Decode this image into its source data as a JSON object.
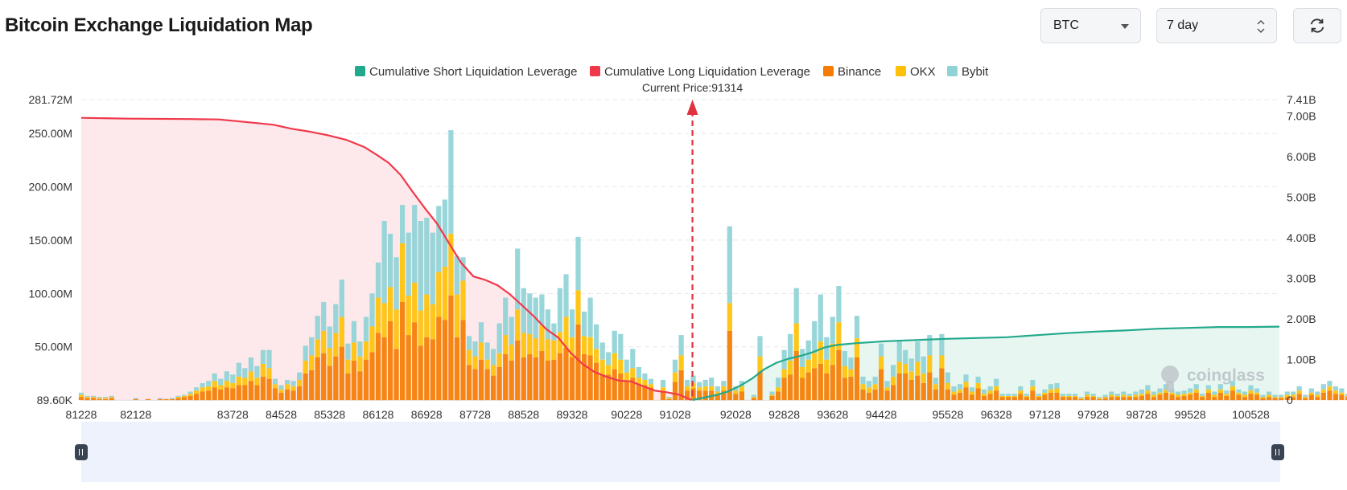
{
  "header": {
    "title": "Bitcoin Exchange Liquidation Map",
    "coin_value": "BTC",
    "range_value": "7 day",
    "refresh_icon": "refresh-icon"
  },
  "colors": {
    "short": "#22a98b",
    "long": "#f0384a",
    "binance": "#f57c00",
    "okx": "#ffc107",
    "bybit": "#8fd3d6",
    "long_fill": "#fde4e7",
    "short_fill": "#e4f4ef"
  },
  "chart_data": {
    "type": "bar",
    "title": "",
    "current_price_label": "Current Price:91314",
    "current_price": 91314,
    "watermark": "coinglass",
    "legend": [
      "Cumulative Short Liquidation Leverage",
      "Cumulative Long Liquidation Leverage",
      "Binance",
      "OKX",
      "Bybit"
    ],
    "legend_position": "top-center",
    "x_ticks": [
      "81228",
      "82128",
      "83728",
      "84528",
      "85328",
      "86128",
      "86928",
      "87728",
      "88528",
      "89328",
      "90228",
      "91028",
      "92028",
      "92828",
      "93628",
      "94428",
      "95528",
      "96328",
      "97128",
      "97928",
      "98728",
      "99528",
      "100528"
    ],
    "y_left_ticks": [
      "89.60K",
      "50.00M",
      "100.00M",
      "150.00M",
      "200.00M",
      "250.00M",
      "281.72M"
    ],
    "y_left_values": [
      0.0896,
      50,
      100,
      150,
      200,
      250,
      281.72
    ],
    "y_left_range": [
      0.0896,
      281.72
    ],
    "y_right_ticks": [
      "0",
      "1.00B",
      "2.00B",
      "3.00B",
      "4.00B",
      "5.00B",
      "6.00B",
      "7.00B",
      "7.41B"
    ],
    "y_right_values": [
      0,
      1,
      2,
      3,
      4,
      5,
      6,
      7,
      7.41
    ],
    "y_right_range": [
      0,
      7.41
    ],
    "x_range": [
      81228,
      101000
    ],
    "bar_step": 100,
    "bars_start": 81228,
    "stack_order": [
      "Binance",
      "OKX",
      "Bybit"
    ],
    "grid": true,
    "zoom_handles": true,
    "bars": [
      [
        3,
        2,
        2
      ],
      [
        2,
        1,
        1
      ],
      [
        2,
        1,
        1
      ],
      [
        1,
        1,
        1
      ],
      [
        1,
        1,
        1
      ],
      [
        2,
        1,
        1
      ],
      [
        0,
        0,
        0
      ],
      [
        0,
        0,
        0
      ],
      [
        0,
        0,
        0
      ],
      [
        1,
        0,
        1
      ],
      [
        0,
        0,
        0
      ],
      [
        1,
        0,
        0
      ],
      [
        0,
        0,
        0
      ],
      [
        1,
        0,
        1
      ],
      [
        1,
        0,
        0
      ],
      [
        1,
        0,
        1
      ],
      [
        2,
        1,
        1
      ],
      [
        3,
        1,
        1
      ],
      [
        4,
        2,
        2
      ],
      [
        6,
        3,
        3
      ],
      [
        8,
        4,
        4
      ],
      [
        9,
        4,
        5
      ],
      [
        12,
        6,
        7
      ],
      [
        10,
        4,
        6
      ],
      [
        12,
        6,
        9
      ],
      [
        11,
        5,
        8
      ],
      [
        14,
        8,
        13
      ],
      [
        14,
        7,
        9
      ],
      [
        18,
        9,
        13
      ],
      [
        14,
        7,
        11
      ],
      [
        22,
        12,
        13
      ],
      [
        20,
        10,
        17
      ],
      [
        11,
        4,
        5
      ],
      [
        7,
        3,
        4
      ],
      [
        10,
        5,
        4
      ],
      [
        9,
        4,
        5
      ],
      [
        13,
        6,
        7
      ],
      [
        25,
        12,
        14
      ],
      [
        28,
        14,
        17
      ],
      [
        40,
        17,
        22
      ],
      [
        44,
        21,
        27
      ],
      [
        32,
        17,
        20
      ],
      [
        41,
        22,
        27
      ],
      [
        50,
        28,
        35
      ],
      [
        25,
        13,
        15
      ],
      [
        37,
        17,
        20
      ],
      [
        27,
        14,
        14
      ],
      [
        38,
        17,
        23
      ],
      [
        45,
        24,
        31
      ],
      [
        63,
        33,
        33
      ],
      [
        59,
        32,
        77
      ],
      [
        74,
        32,
        50
      ],
      [
        48,
        37,
        49
      ],
      [
        92,
        55,
        36
      ],
      [
        61,
        37,
        59
      ],
      [
        73,
        37,
        73
      ],
      [
        51,
        33,
        84
      ],
      [
        59,
        40,
        72
      ],
      [
        57,
        33,
        67
      ],
      [
        78,
        42,
        62
      ],
      [
        75,
        50,
        63
      ],
      [
        98,
        58,
        97
      ],
      [
        59,
        40,
        36
      ],
      [
        75,
        37,
        22
      ],
      [
        33,
        14,
        13
      ],
      [
        29,
        12,
        14
      ],
      [
        38,
        16,
        19
      ],
      [
        29,
        9,
        16
      ],
      [
        23,
        10,
        15
      ],
      [
        31,
        13,
        28
      ],
      [
        43,
        18,
        35
      ],
      [
        37,
        15,
        26
      ],
      [
        56,
        29,
        57
      ],
      [
        40,
        23,
        42
      ],
      [
        43,
        19,
        38
      ],
      [
        40,
        18,
        38
      ],
      [
        46,
        24,
        29
      ],
      [
        37,
        20,
        28
      ],
      [
        38,
        18,
        16
      ],
      [
        44,
        20,
        41
      ],
      [
        49,
        29,
        40
      ],
      [
        40,
        19,
        26
      ],
      [
        71,
        32,
        50
      ],
      [
        43,
        17,
        23
      ],
      [
        42,
        17,
        37
      ],
      [
        35,
        13,
        23
      ],
      [
        24,
        14,
        16
      ],
      [
        24,
        9,
        12
      ],
      [
        29,
        15,
        21
      ],
      [
        25,
        13,
        24
      ],
      [
        18,
        8,
        12
      ],
      [
        21,
        9,
        18
      ],
      [
        15,
        6,
        10
      ],
      [
        14,
        5,
        6
      ],
      [
        12,
        3,
        5
      ],
      [
        0,
        0,
        0
      ],
      [
        8,
        4,
        7
      ],
      [
        1,
        1,
        1
      ],
      [
        17,
        9,
        12
      ],
      [
        28,
        14,
        19
      ],
      [
        9,
        4,
        6
      ],
      [
        11,
        5,
        7
      ],
      [
        9,
        3,
        5
      ],
      [
        9,
        4,
        6
      ],
      [
        9,
        4,
        8
      ],
      [
        6,
        2,
        5
      ],
      [
        9,
        4,
        5
      ],
      [
        65,
        26,
        72
      ],
      [
        6,
        3,
        4
      ],
      [
        8,
        5,
        5
      ],
      [
        0,
        0,
        0
      ],
      [
        2,
        1,
        2
      ],
      [
        27,
        14,
        19
      ],
      [
        0,
        0,
        0
      ],
      [
        4,
        1,
        3
      ],
      [
        8,
        4,
        9
      ],
      [
        21,
        8,
        18
      ],
      [
        24,
        13,
        25
      ],
      [
        46,
        26,
        33
      ],
      [
        21,
        10,
        17
      ],
      [
        26,
        12,
        18
      ],
      [
        30,
        14,
        30
      ],
      [
        34,
        21,
        44
      ],
      [
        25,
        13,
        21
      ],
      [
        33,
        20,
        25
      ],
      [
        47,
        26,
        34
      ],
      [
        21,
        11,
        14
      ],
      [
        22,
        7,
        11
      ],
      [
        40,
        18,
        21
      ],
      [
        10,
        5,
        7
      ],
      [
        7,
        5,
        6
      ],
      [
        10,
        5,
        7
      ],
      [
        29,
        12,
        12
      ],
      [
        9,
        3,
        6
      ],
      [
        14,
        8,
        11
      ],
      [
        25,
        11,
        19
      ],
      [
        25,
        9,
        13
      ],
      [
        19,
        8,
        12
      ],
      [
        23,
        13,
        19
      ],
      [
        16,
        9,
        16
      ],
      [
        26,
        16,
        19
      ],
      [
        10,
        5,
        6
      ],
      [
        30,
        12,
        20
      ],
      [
        10,
        6,
        10
      ],
      [
        5,
        3,
        5
      ],
      [
        7,
        3,
        5
      ],
      [
        12,
        5,
        7
      ],
      [
        5,
        3,
        4
      ],
      [
        11,
        5,
        6
      ],
      [
        4,
        2,
        4
      ],
      [
        6,
        3,
        4
      ],
      [
        9,
        4,
        7
      ],
      [
        3,
        1,
        2
      ],
      [
        3,
        1,
        2
      ],
      [
        3,
        1,
        2
      ],
      [
        6,
        3,
        4
      ],
      [
        3,
        1,
        2
      ],
      [
        9,
        4,
        6
      ],
      [
        3,
        1,
        2
      ],
      [
        5,
        2,
        3
      ],
      [
        7,
        3,
        5
      ],
      [
        7,
        4,
        5
      ],
      [
        3,
        1,
        2
      ],
      [
        3,
        1,
        2
      ],
      [
        3,
        1,
        2
      ],
      [
        1,
        1,
        1
      ],
      [
        3,
        2,
        3
      ],
      [
        3,
        1,
        2
      ],
      [
        1,
        1,
        1
      ],
      [
        2,
        1,
        2
      ],
      [
        3,
        2,
        3
      ],
      [
        3,
        1,
        2
      ],
      [
        3,
        2,
        3
      ],
      [
        3,
        1,
        2
      ],
      [
        3,
        2,
        3
      ],
      [
        4,
        2,
        4
      ],
      [
        6,
        3,
        5
      ],
      [
        3,
        2,
        3
      ],
      [
        5,
        2,
        4
      ],
      [
        7,
        3,
        5
      ],
      [
        5,
        2,
        3
      ],
      [
        3,
        2,
        3
      ],
      [
        4,
        2,
        3
      ],
      [
        5,
        2,
        4
      ],
      [
        7,
        3,
        5
      ],
      [
        3,
        1,
        2
      ],
      [
        7,
        3,
        4
      ],
      [
        3,
        2,
        3
      ],
      [
        7,
        3,
        5
      ],
      [
        4,
        2,
        3
      ],
      [
        9,
        4,
        5
      ],
      [
        5,
        2,
        3
      ],
      [
        3,
        2,
        3
      ],
      [
        6,
        3,
        5
      ],
      [
        5,
        2,
        4
      ],
      [
        2,
        1,
        2
      ],
      [
        3,
        2,
        3
      ],
      [
        2,
        1,
        2
      ],
      [
        2,
        1,
        2
      ],
      [
        3,
        2,
        3
      ],
      [
        3,
        2,
        3
      ],
      [
        6,
        3,
        4
      ],
      [
        2,
        1,
        2
      ],
      [
        5,
        2,
        4
      ],
      [
        3,
        2,
        3
      ],
      [
        7,
        3,
        5
      ],
      [
        9,
        4,
        5
      ],
      [
        6,
        3,
        4
      ],
      [
        5,
        2,
        4
      ],
      [
        3,
        1,
        2
      ],
      [
        5,
        2,
        4
      ],
      [
        3,
        2,
        3
      ],
      [
        2,
        1,
        2
      ],
      [
        5,
        2,
        3
      ],
      [
        2,
        1,
        2
      ],
      [
        3,
        1,
        2
      ],
      [
        2,
        1,
        2
      ],
      [
        3,
        1,
        2
      ],
      [
        2,
        1,
        1
      ],
      [
        2,
        1,
        1
      ],
      [
        1,
        1,
        1
      ],
      [
        2,
        1,
        1
      ],
      [
        0,
        0,
        0
      ],
      [
        1,
        1,
        1
      ],
      [
        1,
        0,
        1
      ],
      [
        1,
        1,
        1
      ],
      [
        1,
        0,
        1
      ],
      [
        2,
        1,
        1
      ]
    ],
    "cumulative_long": {
      "unit": "B",
      "points": [
        [
          81228,
          6.96
        ],
        [
          82000,
          6.94
        ],
        [
          83000,
          6.93
        ],
        [
          83500,
          6.92
        ],
        [
          84000,
          6.85
        ],
        [
          84400,
          6.79
        ],
        [
          84700,
          6.69
        ],
        [
          85000,
          6.62
        ],
        [
          85300,
          6.53
        ],
        [
          85600,
          6.42
        ],
        [
          85900,
          6.24
        ],
        [
          86100,
          6.05
        ],
        [
          86300,
          5.85
        ],
        [
          86500,
          5.55
        ],
        [
          86700,
          5.13
        ],
        [
          86900,
          4.73
        ],
        [
          87100,
          4.35
        ],
        [
          87300,
          3.86
        ],
        [
          87500,
          3.38
        ],
        [
          87700,
          3.05
        ],
        [
          87900,
          2.96
        ],
        [
          88100,
          2.83
        ],
        [
          88300,
          2.61
        ],
        [
          88500,
          2.34
        ],
        [
          88700,
          2.06
        ],
        [
          88900,
          1.75
        ],
        [
          89100,
          1.54
        ],
        [
          89300,
          1.17
        ],
        [
          89500,
          0.89
        ],
        [
          89700,
          0.69
        ],
        [
          89900,
          0.57
        ],
        [
          90100,
          0.48
        ],
        [
          90300,
          0.46
        ],
        [
          90500,
          0.34
        ],
        [
          90700,
          0.23
        ],
        [
          90900,
          0.19
        ],
        [
          91100,
          0.13
        ],
        [
          91300,
          0.0
        ]
      ]
    },
    "cumulative_short": {
      "unit": "B",
      "points": [
        [
          91314,
          0.0
        ],
        [
          91500,
          0.06
        ],
        [
          91700,
          0.12
        ],
        [
          91900,
          0.21
        ],
        [
          92100,
          0.35
        ],
        [
          92300,
          0.53
        ],
        [
          92500,
          0.76
        ],
        [
          92700,
          0.92
        ],
        [
          92900,
          1.02
        ],
        [
          93100,
          1.09
        ],
        [
          93300,
          1.18
        ],
        [
          93500,
          1.3
        ],
        [
          93700,
          1.36
        ],
        [
          94000,
          1.4
        ],
        [
          94500,
          1.45
        ],
        [
          95000,
          1.48
        ],
        [
          95500,
          1.51
        ],
        [
          96000,
          1.53
        ],
        [
          96500,
          1.55
        ],
        [
          97000,
          1.6
        ],
        [
          97500,
          1.65
        ],
        [
          98000,
          1.69
        ],
        [
          98500,
          1.72
        ],
        [
          99000,
          1.76
        ],
        [
          99500,
          1.78
        ],
        [
          100000,
          1.8
        ],
        [
          100500,
          1.8
        ],
        [
          101000,
          1.81
        ]
      ]
    }
  }
}
